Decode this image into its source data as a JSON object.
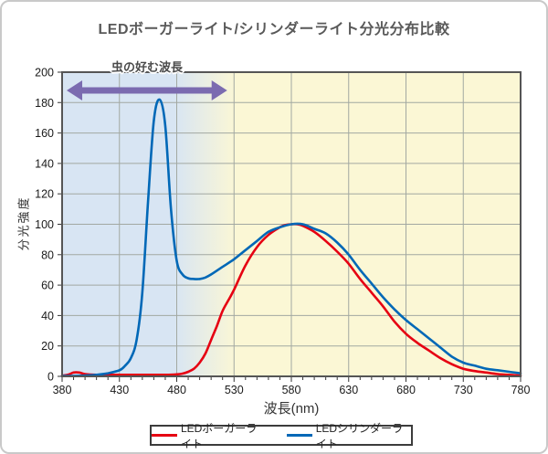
{
  "title": "LEDボーガーライト/シリンダーライト分光分布比較",
  "legend": [
    {
      "label": "LEDボーガーライト",
      "color": "#e60012"
    },
    {
      "label": "LEDシリンダーライト",
      "color": "#0068b7"
    }
  ],
  "chart_data": {
    "type": "line",
    "title": "LEDボーガーライト/シリンダーライト分光分布比較",
    "xlabel": "波長(nm)",
    "ylabel": "分光強度",
    "xlim": [
      380,
      780
    ],
    "ylim": [
      0,
      200
    ],
    "xticks": [
      380,
      430,
      480,
      530,
      580,
      630,
      680,
      730,
      780
    ],
    "yticks": [
      0,
      20,
      40,
      60,
      80,
      100,
      120,
      140,
      160,
      180,
      200
    ],
    "x_minor_step": 10,
    "grid": true,
    "grid_color": "#a2a8a2",
    "border_color": "#555555",
    "legend_position": "bottom",
    "band": {
      "label": "虫の好む波長",
      "left_bg": "#d8e5f3",
      "right_bg": "#fbf7d5",
      "blend_from_nm": 478,
      "blend_to_nm": 532,
      "arrow_from_nm": 384,
      "arrow_to_nm": 524,
      "arrow_color": "#7b6bb0"
    },
    "series": [
      {
        "name": "LEDボーガーライト",
        "color": "#e60012",
        "x": [
          380,
          385,
          390,
          395,
          400,
          410,
          420,
          430,
          440,
          450,
          460,
          470,
          480,
          485,
          490,
          495,
          500,
          505,
          510,
          515,
          520,
          525,
          530,
          540,
          550,
          560,
          570,
          575,
          580,
          585,
          590,
          600,
          610,
          620,
          630,
          640,
          650,
          660,
          670,
          680,
          690,
          700,
          710,
          720,
          730,
          740,
          750,
          760,
          770,
          780
        ],
        "y": [
          0.5,
          1,
          2.5,
          2.5,
          1.5,
          1,
          1,
          1,
          1,
          1,
          1,
          1,
          1.3,
          1.8,
          3,
          5,
          9,
          15,
          24,
          33,
          43,
          50,
          57,
          73,
          85,
          93,
          98,
          99.5,
          100,
          100,
          99,
          95,
          89,
          82,
          74,
          64,
          55,
          46,
          36,
          28,
          22,
          17,
          12,
          8,
          5,
          3.5,
          2.5,
          1.5,
          1,
          0.5
        ]
      },
      {
        "name": "LEDシリンダーライト",
        "color": "#0068b7",
        "x": [
          380,
          390,
          400,
          410,
          420,
          430,
          435,
          440,
          445,
          450,
          455,
          460,
          465,
          470,
          475,
          480,
          485,
          490,
          495,
          500,
          505,
          510,
          520,
          530,
          540,
          550,
          560,
          570,
          580,
          590,
          600,
          610,
          620,
          630,
          640,
          650,
          660,
          670,
          680,
          690,
          700,
          710,
          720,
          730,
          740,
          750,
          760,
          770,
          780
        ],
        "y": [
          0.3,
          0.3,
          0.5,
          1,
          2,
          4,
          7,
          12,
          24,
          55,
          115,
          168,
          182,
          165,
          110,
          76,
          67,
          64.5,
          64,
          64,
          65,
          67,
          72,
          77,
          83,
          89,
          95,
          98,
          100,
          100,
          97,
          94,
          88,
          80,
          70,
          61,
          52,
          44,
          37,
          31,
          25,
          19,
          13,
          9,
          7,
          5,
          4,
          3,
          2
        ]
      }
    ]
  }
}
